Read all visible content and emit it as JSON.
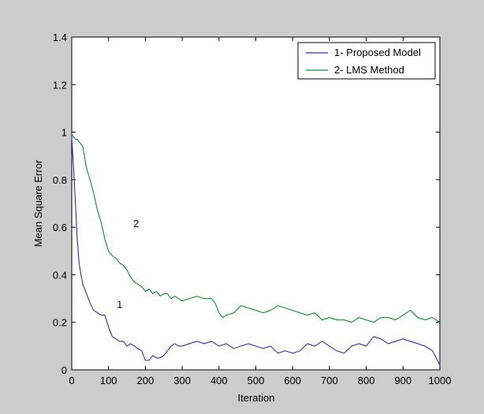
{
  "chart_data": {
    "type": "line",
    "xlabel": "Iteration",
    "ylabel": "Mean Square Error",
    "xlim": [
      0,
      1000
    ],
    "ylim": [
      0,
      1.4
    ],
    "xticks": [
      0,
      100,
      200,
      300,
      400,
      500,
      600,
      700,
      800,
      900,
      1000
    ],
    "yticks": [
      0,
      0.2,
      0.4,
      0.6,
      0.8,
      1,
      1.2,
      1.4
    ],
    "legend_position": "top-right",
    "grid": false,
    "series": [
      {
        "name": "1- Proposed Model",
        "color": "#3030a8",
        "x": [
          0,
          5,
          10,
          15,
          20,
          25,
          30,
          40,
          50,
          60,
          70,
          80,
          90,
          100,
          110,
          120,
          130,
          140,
          150,
          160,
          170,
          180,
          190,
          200,
          210,
          220,
          230,
          240,
          250,
          260,
          270,
          280,
          290,
          300,
          320,
          340,
          360,
          380,
          400,
          420,
          440,
          460,
          480,
          500,
          520,
          540,
          560,
          580,
          600,
          620,
          640,
          660,
          680,
          700,
          720,
          740,
          760,
          780,
          800,
          820,
          840,
          860,
          880,
          900,
          920,
          940,
          960,
          980,
          1000
        ],
        "values": [
          0.98,
          0.85,
          0.7,
          0.55,
          0.45,
          0.4,
          0.36,
          0.32,
          0.28,
          0.25,
          0.24,
          0.23,
          0.23,
          0.18,
          0.14,
          0.13,
          0.12,
          0.12,
          0.1,
          0.11,
          0.1,
          0.09,
          0.08,
          0.04,
          0.04,
          0.06,
          0.05,
          0.05,
          0.06,
          0.08,
          0.1,
          0.11,
          0.1,
          0.1,
          0.11,
          0.12,
          0.11,
          0.12,
          0.1,
          0.11,
          0.09,
          0.1,
          0.11,
          0.1,
          0.09,
          0.1,
          0.07,
          0.08,
          0.07,
          0.08,
          0.11,
          0.1,
          0.12,
          0.1,
          0.08,
          0.07,
          0.1,
          0.11,
          0.1,
          0.14,
          0.13,
          0.11,
          0.12,
          0.13,
          0.12,
          0.11,
          0.1,
          0.08,
          0.02
        ]
      },
      {
        "name": "2- LMS Method",
        "color": "#108a30",
        "x": [
          0,
          5,
          10,
          15,
          20,
          25,
          30,
          40,
          50,
          60,
          70,
          80,
          90,
          100,
          110,
          120,
          130,
          140,
          150,
          160,
          170,
          180,
          190,
          200,
          210,
          220,
          230,
          240,
          250,
          260,
          270,
          280,
          290,
          300,
          320,
          340,
          360,
          380,
          390,
          400,
          410,
          420,
          440,
          460,
          480,
          500,
          520,
          540,
          560,
          580,
          600,
          620,
          640,
          660,
          680,
          700,
          720,
          740,
          760,
          780,
          800,
          820,
          840,
          860,
          880,
          900,
          920,
          940,
          960,
          980,
          1000
        ],
        "values": [
          0.99,
          0.98,
          0.97,
          0.97,
          0.96,
          0.95,
          0.94,
          0.85,
          0.8,
          0.74,
          0.67,
          0.62,
          0.55,
          0.5,
          0.48,
          0.47,
          0.45,
          0.44,
          0.42,
          0.39,
          0.37,
          0.36,
          0.35,
          0.33,
          0.34,
          0.32,
          0.33,
          0.31,
          0.32,
          0.32,
          0.3,
          0.31,
          0.3,
          0.29,
          0.3,
          0.31,
          0.3,
          0.3,
          0.28,
          0.24,
          0.22,
          0.23,
          0.24,
          0.27,
          0.26,
          0.25,
          0.24,
          0.25,
          0.27,
          0.26,
          0.25,
          0.24,
          0.23,
          0.24,
          0.21,
          0.22,
          0.21,
          0.21,
          0.2,
          0.22,
          0.21,
          0.2,
          0.22,
          0.22,
          0.21,
          0.23,
          0.25,
          0.22,
          0.21,
          0.22,
          0.2
        ]
      }
    ],
    "annotations": [
      {
        "text": "1",
        "x": 130,
        "y": 0.26
      },
      {
        "text": "2",
        "x": 175,
        "y": 0.6
      }
    ]
  }
}
